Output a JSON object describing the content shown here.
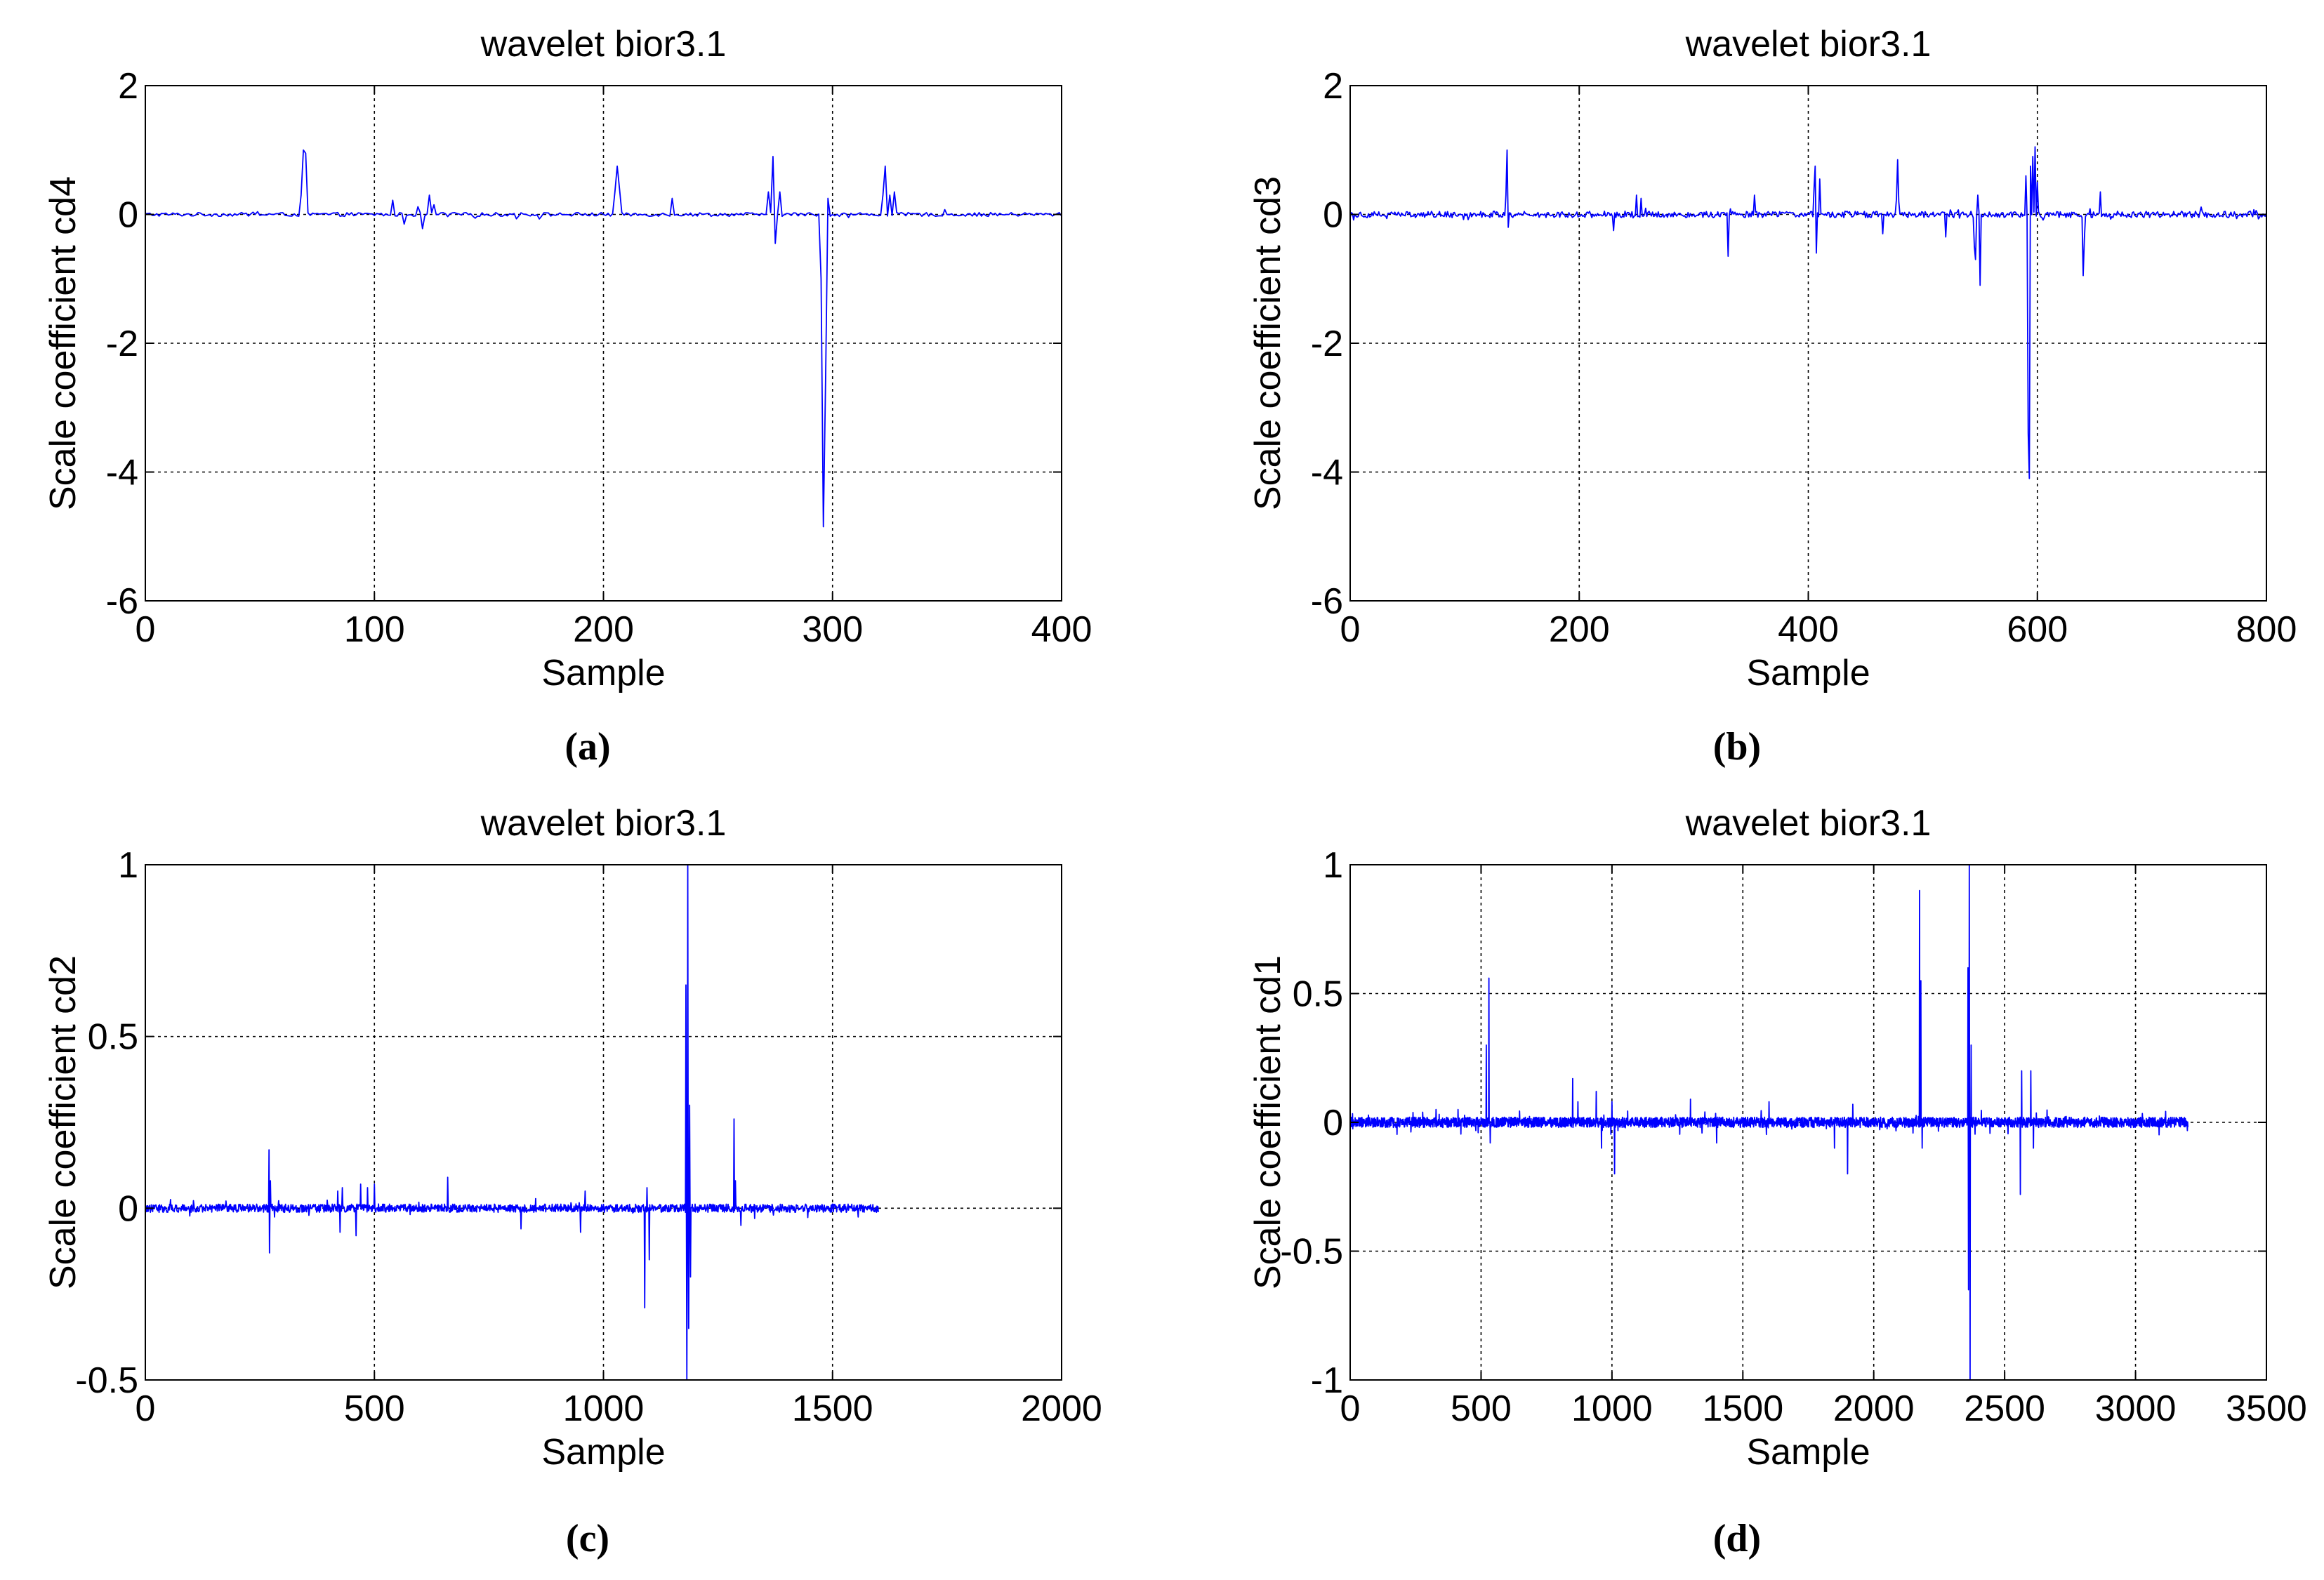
{
  "figure": {
    "captions": [
      "(a)",
      "(b)",
      "(c)",
      "(d)"
    ]
  },
  "colors": {
    "series": "#0000ff",
    "axis": "#000000",
    "grid": "#000000",
    "background": "#ffffff"
  },
  "chart_data": [
    {
      "id": "a",
      "type": "line",
      "title": "wavelet bior3.1",
      "xlabel": "Sample",
      "ylabel": "Scale coefficient cd4",
      "xlim": [
        0,
        400
      ],
      "ylim": [
        -6,
        2
      ],
      "xticks": [
        0,
        100,
        200,
        300,
        400
      ],
      "yticks": [
        2,
        0,
        -2,
        -4,
        -6
      ],
      "grid": true,
      "n_samples": 400,
      "noise_amplitude": 0.03,
      "peaks": [
        {
          "x": 68,
          "y": 0.3
        },
        {
          "x": 69,
          "y": 1.0
        },
        {
          "x": 70,
          "y": 0.95
        },
        {
          "x": 108,
          "y": 0.22
        },
        {
          "x": 113,
          "y": -0.15
        },
        {
          "x": 119,
          "y": 0.12
        },
        {
          "x": 121,
          "y": -0.22
        },
        {
          "x": 124,
          "y": 0.3
        },
        {
          "x": 126,
          "y": 0.15
        },
        {
          "x": 205,
          "y": 0.35
        },
        {
          "x": 206,
          "y": 0.75
        },
        {
          "x": 207,
          "y": 0.4
        },
        {
          "x": 230,
          "y": 0.25
        },
        {
          "x": 272,
          "y": 0.35
        },
        {
          "x": 274,
          "y": 0.9
        },
        {
          "x": 275,
          "y": -0.45
        },
        {
          "x": 277,
          "y": 0.35
        },
        {
          "x": 295,
          "y": -1.0
        },
        {
          "x": 296,
          "y": -4.85
        },
        {
          "x": 297,
          "y": -2.5
        },
        {
          "x": 298,
          "y": 0.25
        },
        {
          "x": 322,
          "y": 0.3
        },
        {
          "x": 323,
          "y": 0.75
        },
        {
          "x": 325,
          "y": 0.3
        },
        {
          "x": 327,
          "y": 0.35
        }
      ]
    },
    {
      "id": "b",
      "type": "line",
      "title": "wavelet bior3.1",
      "xlabel": "Sample",
      "ylabel": "Scale coefficient cd3",
      "xlim": [
        0,
        800
      ],
      "ylim": [
        -6,
        2
      ],
      "xticks": [
        0,
        200,
        400,
        600,
        800
      ],
      "yticks": [
        2,
        0,
        -2,
        -4,
        -6
      ],
      "grid": true,
      "n_samples": 800,
      "noise_amplitude": 0.05,
      "peaks": [
        {
          "x": 136,
          "y": 0.3
        },
        {
          "x": 137,
          "y": 1.0
        },
        {
          "x": 138,
          "y": -0.2
        },
        {
          "x": 230,
          "y": -0.25
        },
        {
          "x": 250,
          "y": 0.3
        },
        {
          "x": 254,
          "y": 0.25
        },
        {
          "x": 330,
          "y": -0.65
        },
        {
          "x": 353,
          "y": 0.3
        },
        {
          "x": 405,
          "y": 0.4
        },
        {
          "x": 406,
          "y": 0.75
        },
        {
          "x": 407,
          "y": -0.6
        },
        {
          "x": 410,
          "y": 0.55
        },
        {
          "x": 465,
          "y": -0.3
        },
        {
          "x": 477,
          "y": 0.25
        },
        {
          "x": 478,
          "y": 0.85
        },
        {
          "x": 479,
          "y": 0.2
        },
        {
          "x": 520,
          "y": -0.35
        },
        {
          "x": 545,
          "y": -0.5
        },
        {
          "x": 546,
          "y": -0.7
        },
        {
          "x": 548,
          "y": 0.3
        },
        {
          "x": 550,
          "y": -1.1
        },
        {
          "x": 590,
          "y": 0.6
        },
        {
          "x": 592,
          "y": -3.4
        },
        {
          "x": 593,
          "y": -4.1
        },
        {
          "x": 594,
          "y": 0.75
        },
        {
          "x": 596,
          "y": 0.9
        },
        {
          "x": 598,
          "y": 1.05
        },
        {
          "x": 600,
          "y": 0.5
        },
        {
          "x": 640,
          "y": -0.95
        },
        {
          "x": 641,
          "y": -0.4
        },
        {
          "x": 655,
          "y": 0.35
        }
      ]
    },
    {
      "id": "c",
      "type": "line",
      "title": "wavelet bior3.1",
      "xlabel": "Sample",
      "ylabel": "Scale coefficient cd2",
      "xlim": [
        0,
        2000
      ],
      "ylim": [
        -0.5,
        1
      ],
      "xticks": [
        0,
        500,
        1000,
        1500,
        2000
      ],
      "yticks": [
        1,
        0.5,
        0,
        -0.5
      ],
      "grid": true,
      "n_samples": 1600,
      "noise_amplitude": 0.012,
      "peaks": [
        {
          "x": 270,
          "y": 0.17
        },
        {
          "x": 271,
          "y": -0.13
        },
        {
          "x": 273,
          "y": 0.08
        },
        {
          "x": 420,
          "y": 0.05
        },
        {
          "x": 425,
          "y": -0.07
        },
        {
          "x": 430,
          "y": 0.06
        },
        {
          "x": 460,
          "y": -0.08
        },
        {
          "x": 470,
          "y": 0.07
        },
        {
          "x": 485,
          "y": 0.06
        },
        {
          "x": 500,
          "y": 0.07
        },
        {
          "x": 660,
          "y": 0.09
        },
        {
          "x": 820,
          "y": -0.06
        },
        {
          "x": 950,
          "y": -0.07
        },
        {
          "x": 960,
          "y": 0.05
        },
        {
          "x": 1090,
          "y": -0.29
        },
        {
          "x": 1095,
          "y": 0.06
        },
        {
          "x": 1100,
          "y": -0.15
        },
        {
          "x": 1180,
          "y": 0.65
        },
        {
          "x": 1182,
          "y": -0.5
        },
        {
          "x": 1184,
          "y": 1.0
        },
        {
          "x": 1186,
          "y": -0.35
        },
        {
          "x": 1188,
          "y": 0.3
        },
        {
          "x": 1190,
          "y": -0.2
        },
        {
          "x": 1285,
          "y": 0.26
        },
        {
          "x": 1288,
          "y": 0.08
        },
        {
          "x": 1300,
          "y": -0.05
        }
      ]
    },
    {
      "id": "d",
      "type": "line",
      "title": "wavelet bior3.1",
      "xlabel": "Sample",
      "ylabel": "Scale coefficient cd1",
      "xlim": [
        0,
        3500
      ],
      "ylim": [
        -1,
        1
      ],
      "xticks": [
        0,
        500,
        1000,
        1500,
        2000,
        2500,
        3000,
        3500
      ],
      "yticks": [
        1,
        0.5,
        0,
        -0.5,
        -1
      ],
      "grid": true,
      "n_samples": 3200,
      "noise_amplitude": 0.02,
      "peaks": [
        {
          "x": 520,
          "y": 0.3
        },
        {
          "x": 530,
          "y": 0.56
        },
        {
          "x": 535,
          "y": -0.08
        },
        {
          "x": 850,
          "y": 0.17
        },
        {
          "x": 870,
          "y": 0.08
        },
        {
          "x": 940,
          "y": 0.12
        },
        {
          "x": 960,
          "y": -0.1
        },
        {
          "x": 1000,
          "y": 0.08
        },
        {
          "x": 1010,
          "y": -0.2
        },
        {
          "x": 1300,
          "y": 0.09
        },
        {
          "x": 1400,
          "y": -0.08
        },
        {
          "x": 1600,
          "y": 0.08
        },
        {
          "x": 1850,
          "y": -0.1
        },
        {
          "x": 1900,
          "y": -0.2
        },
        {
          "x": 1920,
          "y": 0.07
        },
        {
          "x": 2175,
          "y": 0.9
        },
        {
          "x": 2180,
          "y": 0.55
        },
        {
          "x": 2185,
          "y": -0.1
        },
        {
          "x": 2360,
          "y": 0.6
        },
        {
          "x": 2362,
          "y": -0.65
        },
        {
          "x": 2365,
          "y": 1.0
        },
        {
          "x": 2368,
          "y": -1.0
        },
        {
          "x": 2372,
          "y": 0.3
        },
        {
          "x": 2560,
          "y": -0.28
        },
        {
          "x": 2565,
          "y": 0.2
        },
        {
          "x": 2600,
          "y": 0.2
        },
        {
          "x": 2610,
          "y": -0.1
        }
      ]
    }
  ]
}
